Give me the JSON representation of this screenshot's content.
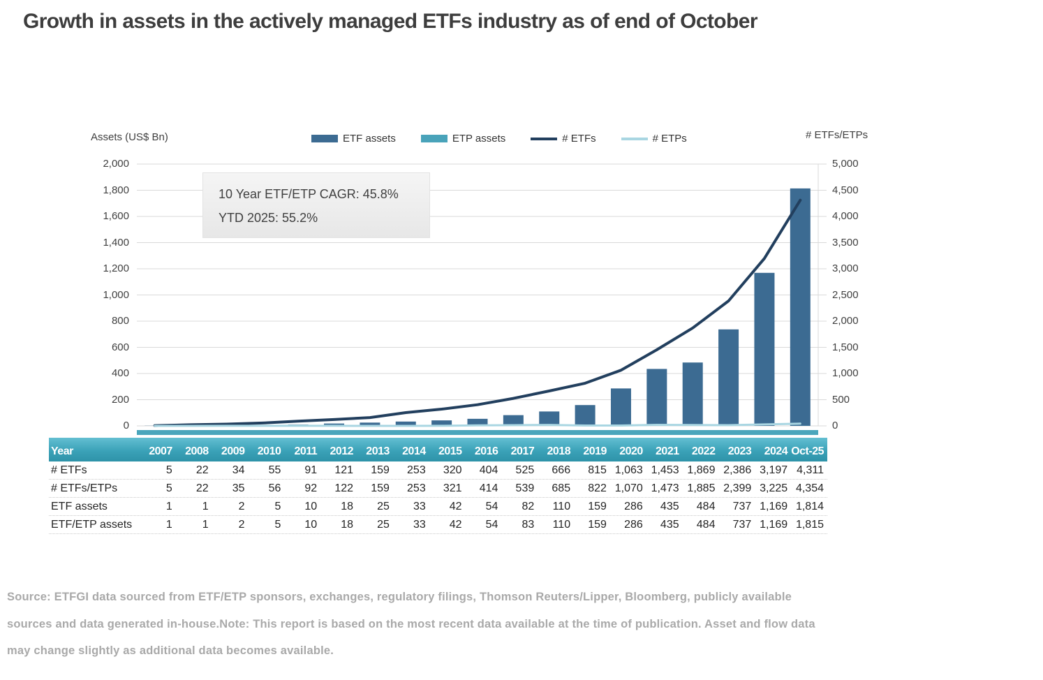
{
  "title": "Growth in assets in the actively managed ETFs industry as of end of October",
  "annotation": {
    "line1": "10 Year ETF/ETP CAGR: 45.8%",
    "line2": "YTD 2025: 55.2%"
  },
  "colors": {
    "etf_assets_bar": "#3c6b92",
    "etp_assets_bar": "#49a3ba",
    "etfs_line": "#223f5e",
    "etps_line": "#a9d6e2",
    "gridline": "#d9d9d9",
    "axis_strip": "#4aa6bc",
    "table_header_top": "#63bfd2",
    "table_header_bottom": "#2e93a9",
    "title_text": "#3d3d3d",
    "source_text": "#a9a9a9"
  },
  "chart_data": {
    "type": "bar",
    "subtype": "combo-bar-line-dual-axis",
    "title": "Growth in assets in the actively managed ETFs industry as of end of October",
    "categories": [
      "2007",
      "2008",
      "2009",
      "2010",
      "2011",
      "2012",
      "2013",
      "2014",
      "2015",
      "2016",
      "2017",
      "2018",
      "2019",
      "2020",
      "2021",
      "2022",
      "2023",
      "2024",
      "Oct-25"
    ],
    "series": [
      {
        "name": "ETF assets",
        "type": "bar",
        "axis": "left",
        "color": "#3c6b92",
        "values": [
          1,
          1,
          2,
          5,
          10,
          18,
          25,
          33,
          42,
          54,
          82,
          110,
          159,
          286,
          435,
          484,
          737,
          1169,
          1814
        ]
      },
      {
        "name": "ETP assets",
        "type": "bar",
        "axis": "left",
        "color": "#49a3ba",
        "values": [
          0,
          0,
          0,
          0,
          0,
          0,
          0,
          0,
          0,
          0,
          1,
          0,
          0,
          0,
          0,
          0,
          0,
          0,
          1
        ]
      },
      {
        "name": "# ETFs",
        "type": "line",
        "axis": "right",
        "color": "#223f5e",
        "values": [
          5,
          22,
          34,
          55,
          91,
          121,
          159,
          253,
          320,
          404,
          525,
          666,
          815,
          1063,
          1453,
          1869,
          2386,
          3197,
          4311
        ]
      },
      {
        "name": "# ETPs",
        "type": "line",
        "axis": "right",
        "color": "#a9d6e2",
        "values": [
          0,
          0,
          1,
          1,
          1,
          1,
          0,
          0,
          1,
          10,
          14,
          19,
          7,
          7,
          20,
          16,
          13,
          28,
          43
        ]
      }
    ],
    "left_axis": {
      "label": "Assets (US$ Bn)",
      "min": 0,
      "max": 2000,
      "step": 200
    },
    "right_axis": {
      "label": "# ETFs/ETPs",
      "min": 0,
      "max": 5000,
      "step": 500
    },
    "grid": true,
    "legend_position": "top-center"
  },
  "table": {
    "header": [
      "Year",
      "2007",
      "2008",
      "2009",
      "2010",
      "2011",
      "2012",
      "2013",
      "2014",
      "2015",
      "2016",
      "2017",
      "2018",
      "2019",
      "2020",
      "2021",
      "2022",
      "2023",
      "2024",
      "Oct-25"
    ],
    "rows": [
      {
        "label": "# ETFs",
        "values": [
          "5",
          "22",
          "34",
          "55",
          "91",
          "121",
          "159",
          "253",
          "320",
          "404",
          "525",
          "666",
          "815",
          "1,063",
          "1,453",
          "1,869",
          "2,386",
          "3,197",
          "4,311"
        ]
      },
      {
        "label": "# ETFs/ETPs",
        "values": [
          "5",
          "22",
          "35",
          "56",
          "92",
          "122",
          "159",
          "253",
          "321",
          "414",
          "539",
          "685",
          "822",
          "1,070",
          "1,473",
          "1,885",
          "2,399",
          "3,225",
          "4,354"
        ]
      },
      {
        "label": "ETF assets",
        "values": [
          "1",
          "1",
          "2",
          "5",
          "10",
          "18",
          "25",
          "33",
          "42",
          "54",
          "82",
          "110",
          "159",
          "286",
          "435",
          "484",
          "737",
          "1,169",
          "1,814"
        ]
      },
      {
        "label": "ETF/ETP assets",
        "values": [
          "1",
          "1",
          "2",
          "5",
          "10",
          "18",
          "25",
          "33",
          "42",
          "54",
          "83",
          "110",
          "159",
          "286",
          "435",
          "484",
          "737",
          "1,169",
          "1,815"
        ]
      }
    ]
  },
  "source_lines": [
    "Source: ETFGI data sourced from ETF/ETP sponsors, exchanges, regulatory filings, Thomson Reuters/Lipper, Bloomberg, publicly available",
    "sources and data generated in-house.Note: This report is based on the most recent data available at the time of publication. Asset and flow data",
    "may change slightly as additional data becomes available."
  ]
}
